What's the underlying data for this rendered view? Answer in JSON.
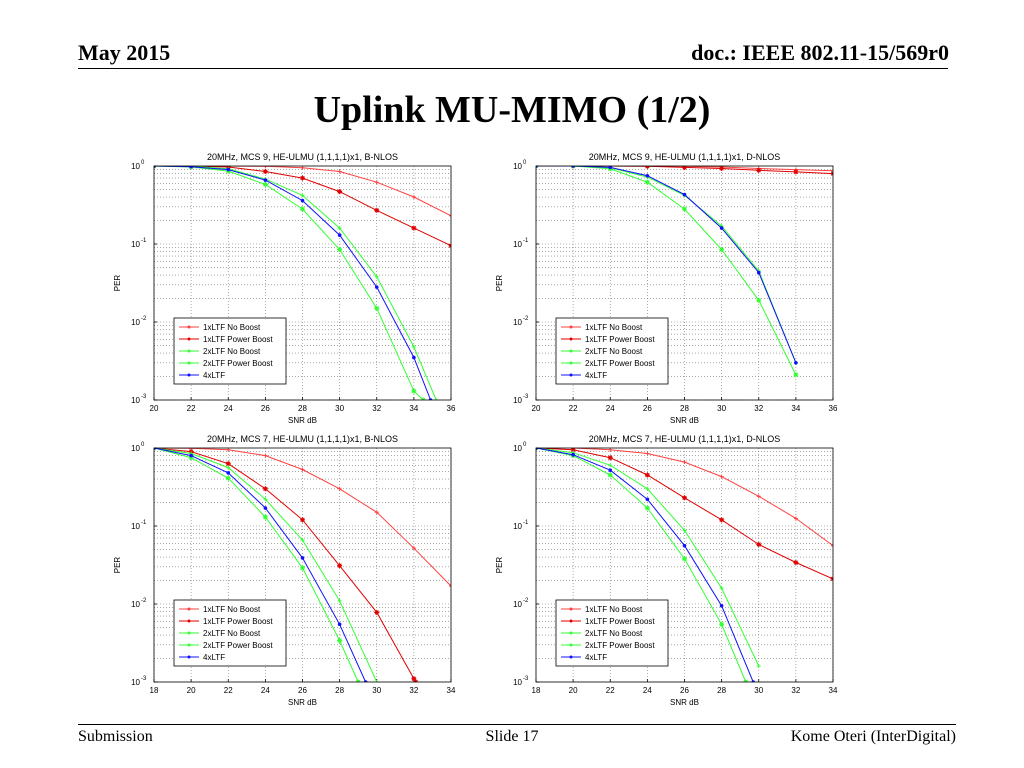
{
  "header": {
    "date": "May 2015",
    "doc": "doc.: IEEE 802.11-15/569r0"
  },
  "slide_title": "Uplink MU-MIMO (1/2)",
  "footer": {
    "left": "Submission",
    "center": "Slide 17",
    "right": "Kome Oteri (InterDigital)"
  },
  "colors": {
    "red": "#ff4040",
    "darkred": "#e00000",
    "green": "#33ff33",
    "blue": "#1010ff"
  },
  "chart_data": [
    {
      "type": "line",
      "title": "20MHz, MCS 9, HE-ULMU (1,1,1,1)x1, B-NLOS",
      "xlabel": "SNR dB",
      "ylabel": "PER",
      "xlim": [
        20,
        36
      ],
      "ylim": [
        0.001,
        1
      ],
      "yscale": "log",
      "xticks": [
        "20",
        "22",
        "24",
        "26",
        "28",
        "30",
        "32",
        "34",
        "36"
      ],
      "grid": true,
      "legend": "bottom-left",
      "series": [
        {
          "name": "1xLTF No Boost",
          "color": "#ff4040",
          "x": [
            20,
            22,
            24,
            26,
            28,
            30,
            32,
            34,
            36
          ],
          "y": [
            1,
            1,
            1,
            0.99,
            0.95,
            0.85,
            0.62,
            0.4,
            0.23
          ]
        },
        {
          "name": "1xLTF Power Boost",
          "color": "#e00000",
          "x": [
            20,
            22,
            24,
            26,
            28,
            30,
            32,
            34,
            36
          ],
          "y": [
            1,
            1,
            0.97,
            0.85,
            0.7,
            0.47,
            0.27,
            0.16,
            0.095
          ]
        },
        {
          "name": "2xLTF No Boost",
          "color": "#33ff33",
          "x": [
            20,
            22,
            24,
            26,
            28,
            30,
            32,
            34,
            35.2
          ],
          "y": [
            1,
            0.99,
            0.92,
            0.68,
            0.42,
            0.16,
            0.038,
            0.0048,
            0.001
          ]
        },
        {
          "name": "2xLTF Power Boost",
          "color": "#33ff33",
          "x": [
            20,
            22,
            24,
            26,
            28,
            30,
            32,
            34,
            34.5
          ],
          "y": [
            1,
            0.97,
            0.86,
            0.58,
            0.28,
            0.085,
            0.015,
            0.0013,
            0.001
          ]
        },
        {
          "name": "4xLTF",
          "color": "#1010ff",
          "x": [
            20,
            22,
            24,
            26,
            28,
            30,
            32,
            34,
            34.9
          ],
          "y": [
            1,
            0.98,
            0.9,
            0.66,
            0.36,
            0.13,
            0.028,
            0.0035,
            0.001
          ]
        }
      ]
    },
    {
      "type": "line",
      "title": "20MHz, MCS 9, HE-ULMU (1,1,1,1)x1, D-NLOS",
      "xlabel": "SNR dB",
      "ylabel": "PER",
      "xlim": [
        20,
        36
      ],
      "ylim": [
        0.001,
        1
      ],
      "yscale": "log",
      "xticks": [
        "20",
        "22",
        "24",
        "26",
        "28",
        "30",
        "32",
        "34",
        "36"
      ],
      "grid": true,
      "legend": "bottom-left",
      "series": [
        {
          "name": "1xLTF No Boost",
          "color": "#ff4040",
          "x": [
            20,
            22,
            24,
            26,
            28,
            30,
            32,
            34,
            36
          ],
          "y": [
            1,
            1,
            1,
            1,
            0.99,
            0.97,
            0.93,
            0.9,
            0.87
          ]
        },
        {
          "name": "1xLTF Power Boost",
          "color": "#e00000",
          "x": [
            20,
            22,
            24,
            26,
            28,
            30,
            32,
            34,
            36
          ],
          "y": [
            1,
            1,
            1,
            0.99,
            0.96,
            0.93,
            0.88,
            0.84,
            0.8
          ]
        },
        {
          "name": "2xLTF No Boost",
          "color": "#33ff33",
          "x": [
            20,
            22,
            24,
            26,
            28,
            30,
            32,
            34
          ],
          "y": [
            1,
            1,
            0.95,
            0.72,
            0.42,
            0.17,
            0.045,
            0.003
          ]
        },
        {
          "name": "2xLTF Power Boost",
          "color": "#33ff33",
          "x": [
            20,
            22,
            24,
            26,
            28,
            30,
            32,
            34
          ],
          "y": [
            1,
            1,
            0.92,
            0.62,
            0.28,
            0.085,
            0.019,
            0.0021
          ]
        },
        {
          "name": "4xLTF",
          "color": "#1010ff",
          "x": [
            20,
            22,
            24,
            26,
            28,
            30,
            32,
            34
          ],
          "y": [
            1,
            1,
            0.96,
            0.75,
            0.43,
            0.16,
            0.043,
            0.003
          ]
        }
      ]
    },
    {
      "type": "line",
      "title": "20MHz, MCS 7, HE-ULMU (1,1,1,1)x1, B-NLOS",
      "xlabel": "SNR dB",
      "ylabel": "PER",
      "xlim": [
        18,
        34
      ],
      "ylim": [
        0.001,
        1
      ],
      "yscale": "log",
      "xticks": [
        "18",
        "20",
        "22",
        "24",
        "26",
        "28",
        "30",
        "32",
        "34"
      ],
      "grid": true,
      "legend": "bottom-left",
      "series": [
        {
          "name": "1xLTF No Boost",
          "color": "#ff4040",
          "x": [
            18,
            20,
            22,
            24,
            26,
            28,
            30,
            32,
            34
          ],
          "y": [
            1,
            0.99,
            0.95,
            0.8,
            0.53,
            0.3,
            0.15,
            0.052,
            0.017
          ]
        },
        {
          "name": "1xLTF Power Boost",
          "color": "#e00000",
          "x": [
            18,
            20,
            22,
            24,
            26,
            28,
            30,
            32,
            32.1
          ],
          "y": [
            1,
            0.9,
            0.63,
            0.3,
            0.12,
            0.031,
            0.0078,
            0.0011,
            0.001
          ]
        },
        {
          "name": "2xLTF No Boost",
          "color": "#33ff33",
          "x": [
            18,
            20,
            22,
            24,
            26,
            28,
            30
          ],
          "y": [
            1,
            0.85,
            0.56,
            0.22,
            0.066,
            0.011,
            0.001
          ]
        },
        {
          "name": "2xLTF Power Boost",
          "color": "#33ff33",
          "x": [
            18,
            20,
            22,
            24,
            26,
            28,
            29
          ],
          "y": [
            1,
            0.75,
            0.41,
            0.13,
            0.029,
            0.0034,
            0.001
          ]
        },
        {
          "name": "4xLTF",
          "color": "#1010ff",
          "x": [
            18,
            20,
            22,
            24,
            26,
            28,
            29.4
          ],
          "y": [
            1,
            0.8,
            0.48,
            0.17,
            0.039,
            0.0055,
            0.001
          ]
        }
      ]
    },
    {
      "type": "line",
      "title": "20MHz, MCS 7, HE-ULMU (1,1,1,1)x1, D-NLOS",
      "xlabel": "SNR dB",
      "ylabel": "PER",
      "xlim": [
        18,
        34
      ],
      "ylim": [
        0.001,
        1
      ],
      "yscale": "log",
      "xticks": [
        "18",
        "20",
        "22",
        "24",
        "26",
        "28",
        "30",
        "32",
        "34"
      ],
      "grid": true,
      "legend": "bottom-left",
      "series": [
        {
          "name": "1xLTF No Boost",
          "color": "#ff4040",
          "x": [
            18,
            20,
            22,
            24,
            26,
            28,
            30,
            32,
            34
          ],
          "y": [
            1,
            1,
            0.95,
            0.85,
            0.66,
            0.43,
            0.24,
            0.125,
            0.056
          ]
        },
        {
          "name": "1xLTF Power Boost",
          "color": "#e00000",
          "x": [
            18,
            20,
            22,
            24,
            26,
            28,
            30,
            32,
            34
          ],
          "y": [
            1,
            0.95,
            0.75,
            0.45,
            0.23,
            0.12,
            0.058,
            0.034,
            0.021
          ]
        },
        {
          "name": "2xLTF No Boost",
          "color": "#33ff33",
          "x": [
            18,
            20,
            22,
            24,
            26,
            28,
            30
          ],
          "y": [
            1,
            0.87,
            0.6,
            0.3,
            0.088,
            0.016,
            0.0016
          ]
        },
        {
          "name": "2xLTF Power Boost",
          "color": "#33ff33",
          "x": [
            18,
            20,
            22,
            24,
            26,
            28,
            29.3
          ],
          "y": [
            1,
            0.8,
            0.45,
            0.17,
            0.038,
            0.0055,
            0.001
          ]
        },
        {
          "name": "4xLTF",
          "color": "#1010ff",
          "x": [
            18,
            20,
            22,
            24,
            26,
            28,
            29.7
          ],
          "y": [
            1,
            0.82,
            0.52,
            0.22,
            0.056,
            0.0095,
            0.001
          ]
        }
      ]
    }
  ]
}
